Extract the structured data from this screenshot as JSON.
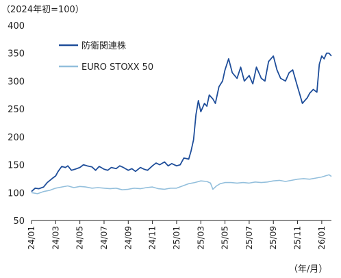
{
  "chart_data": {
    "type": "line",
    "unit_label": "（2024年初=100）",
    "xunit_label": "（年/月）",
    "ylim": [
      50,
      400
    ],
    "yticks": [
      "400",
      "350",
      "300",
      "250",
      "200",
      "150",
      "100",
      "50"
    ],
    "ytick_values": [
      400,
      350,
      300,
      250,
      200,
      150,
      100,
      50
    ],
    "xticks": [
      "24/01",
      "24/03",
      "24/05",
      "24/07",
      "24/09",
      "24/11",
      "25/01",
      "25/03",
      "25/05",
      "25/07",
      "25/09",
      "25/11",
      "26/01"
    ],
    "xlim_months": [
      0,
      24.8
    ],
    "grid": false,
    "legend_position": "top-left",
    "series": [
      {
        "name": "防衛関連株",
        "color": "#1f4e9a",
        "months": [
          0,
          0.3,
          0.6,
          1,
          1.3,
          1.7,
          2,
          2.2,
          2.5,
          2.8,
          3,
          3.3,
          3.6,
          4,
          4.3,
          4.6,
          5,
          5.3,
          5.6,
          6,
          6.3,
          6.6,
          7,
          7.3,
          7.6,
          8,
          8.3,
          8.6,
          9,
          9.3,
          9.6,
          10,
          10.3,
          10.6,
          11,
          11.3,
          11.6,
          12,
          12.3,
          12.6,
          13,
          13.2,
          13.4,
          13.6,
          13.8,
          14,
          14.3,
          14.5,
          14.7,
          15,
          15.2,
          15.5,
          15.8,
          16,
          16.3,
          16.6,
          17,
          17.3,
          17.6,
          18,
          18.3,
          18.6,
          19,
          19.3,
          19.6,
          20,
          20.3,
          20.6,
          21,
          21.3,
          21.6,
          22,
          22.2,
          22.4,
          22.6,
          22.8,
          23,
          23.3,
          23.6,
          23.8,
          24,
          24.2,
          24.4,
          24.6,
          24.8
        ],
        "values": [
          102,
          108,
          107,
          110,
          118,
          125,
          130,
          138,
          147,
          145,
          148,
          140,
          142,
          145,
          150,
          148,
          146,
          140,
          147,
          142,
          140,
          145,
          143,
          148,
          145,
          140,
          143,
          138,
          145,
          142,
          140,
          148,
          153,
          150,
          155,
          148,
          152,
          148,
          150,
          162,
          160,
          175,
          195,
          240,
          265,
          245,
          260,
          255,
          275,
          268,
          260,
          290,
          300,
          320,
          340,
          315,
          305,
          325,
          300,
          310,
          295,
          325,
          305,
          300,
          335,
          345,
          320,
          305,
          300,
          315,
          320,
          290,
          275,
          260,
          265,
          270,
          278,
          285,
          280,
          330,
          345,
          340,
          350,
          350,
          345
        ]
      },
      {
        "name": "EURO STOXX 50",
        "color": "#93bfdc",
        "months": [
          0,
          0.5,
          1,
          1.5,
          2,
          2.5,
          3,
          3.5,
          4,
          4.5,
          5,
          5.5,
          6,
          6.5,
          7,
          7.5,
          8,
          8.5,
          9,
          9.5,
          10,
          10.5,
          11,
          11.5,
          12,
          12.5,
          13,
          13.5,
          14,
          14.5,
          14.8,
          15,
          15.3,
          15.6,
          16,
          16.5,
          17,
          17.5,
          18,
          18.5,
          19,
          19.5,
          20,
          20.5,
          21,
          21.5,
          22,
          22.5,
          23,
          23.5,
          24,
          24.3,
          24.6,
          24.8
        ],
        "values": [
          100,
          98,
          102,
          104,
          108,
          110,
          112,
          109,
          111,
          110,
          108,
          109,
          108,
          107,
          108,
          105,
          106,
          108,
          107,
          109,
          110,
          107,
          106,
          108,
          108,
          112,
          116,
          118,
          121,
          120,
          117,
          106,
          112,
          116,
          118,
          118,
          117,
          118,
          117,
          119,
          118,
          119,
          121,
          122,
          120,
          122,
          124,
          125,
          124,
          126,
          128,
          130,
          132,
          129
        ]
      }
    ]
  }
}
